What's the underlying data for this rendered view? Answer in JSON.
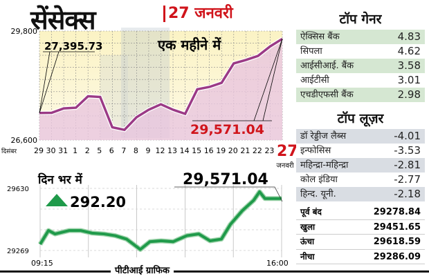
{
  "title": "सेंसेक्स",
  "date": "27 जनवरी",
  "chart_data": [
    {
      "type": "area",
      "title": "एक महीने में",
      "ylim": [
        26600,
        29800
      ],
      "ytick_labels": [
        "29,800",
        "26,600"
      ],
      "x_prefix": "दिसंबर",
      "x_suffix": "जनवरी",
      "categories": [
        "29",
        "30",
        "31",
        "1",
        "2",
        "5",
        "6",
        "7",
        "8",
        "9",
        "12",
        "13",
        "14",
        "15",
        "16",
        "19",
        "20",
        "21",
        "22",
        "23",
        "27"
      ],
      "values": [
        27395.73,
        27400,
        27530,
        27550,
        27885,
        27865,
        26975,
        26900,
        27270,
        27490,
        27650,
        27490,
        27370,
        28090,
        28160,
        28280,
        28850,
        28950,
        29070,
        29350,
        29571.04
      ],
      "annotations": [
        "27,395.73",
        "29,571.04"
      ],
      "grid": true,
      "line_color": "#9b3a86",
      "fill_color": "#e9c6de"
    },
    {
      "type": "line",
      "title": "दिन भर में",
      "change": "292.20",
      "change_direction": "up",
      "close_label": "29,571.04",
      "ylim": [
        29269,
        29630
      ],
      "ytick_labels": [
        "29630",
        "29269"
      ],
      "xtick_labels": [
        "09:15",
        "16:00"
      ],
      "grid": true,
      "line_color": "#1f9a4a",
      "x": [
        "09:15",
        "09:29",
        "09:40",
        "10:04",
        "10:23",
        "10:42",
        "11:02",
        "11:21",
        "11:40",
        "12:03",
        "12:19",
        "12:38",
        "12:58",
        "13:21",
        "13:41",
        "14:00",
        "14:19",
        "14:34",
        "14:54",
        "15:13",
        "15:23",
        "15:32",
        "16:00"
      ],
      "values": [
        29305,
        29385,
        29365,
        29385,
        29385,
        29370,
        29365,
        29355,
        29335,
        29275,
        29320,
        29325,
        29320,
        29355,
        29365,
        29325,
        29335,
        29420,
        29500,
        29560,
        29610,
        29571,
        29571
      ]
    }
  ],
  "gainers": {
    "title": "टॉप गेनर",
    "items": [
      [
        "ऐक्सिस बैंक",
        "4.83"
      ],
      [
        "सिपला",
        "4.62"
      ],
      [
        "आईसीआई. बैंक",
        "3.58"
      ],
      [
        "आईटीसी",
        "3.01"
      ],
      [
        "एचडीएफसी बैंक",
        "2.98"
      ]
    ]
  },
  "losers": {
    "title": "टॉप लूज़र",
    "items": [
      [
        "डॉ रेड्डीज लैब्स",
        "-4.01"
      ],
      [
        "इन्फोसिस",
        "-3.53"
      ],
      [
        "महिन्द्रा-महिन्द्रा",
        "-2.81"
      ],
      [
        "कोल इंडिया",
        "-2.77"
      ],
      [
        "हिन्द. यूनी.",
        "-2.18"
      ]
    ]
  },
  "stats": [
    [
      "पूर्व बंद",
      "29278.84"
    ],
    [
      "खुला",
      "29451.65"
    ],
    [
      "ऊंचा",
      "29618.59"
    ],
    [
      "नीचा",
      "29286.09"
    ]
  ],
  "footer": "पीटीआई ग्राफिक"
}
